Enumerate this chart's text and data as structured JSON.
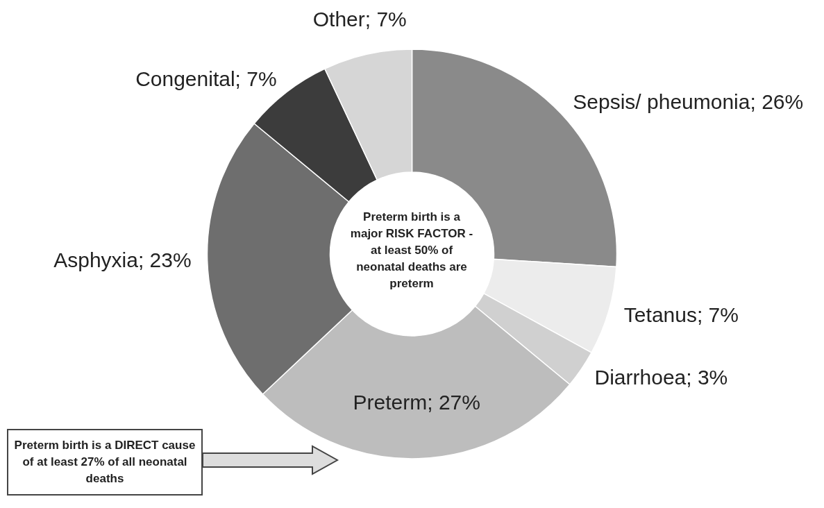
{
  "chart_data": {
    "type": "donut",
    "categories": [
      "Sepsis/ pheumonia",
      "Tetanus",
      "Diarrhoea",
      "Preterm",
      "Asphyxia",
      "Congenital",
      "Other"
    ],
    "values": [
      26,
      7,
      3,
      27,
      23,
      7,
      7
    ],
    "value_labels": [
      "26%",
      "7%",
      "3%",
      "27%",
      "23%",
      "7%",
      "7%"
    ],
    "colors": [
      "#8a8a8a",
      "#ececec",
      "#d0d0d0",
      "#bdbdbd",
      "#6e6e6e",
      "#3c3c3c",
      "#d6d6d6"
    ],
    "annotations": [
      "Preterm birth is a major RISK FACTOR - at least 50% of neonatal deaths are preterm",
      "Preterm birth is a DIRECT cause of at least 27% of all neonatal deaths"
    ]
  }
}
